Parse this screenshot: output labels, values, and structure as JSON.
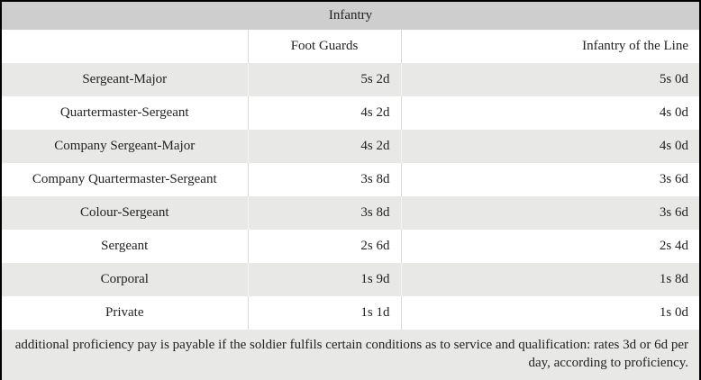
{
  "table": {
    "title": "Infantry",
    "columns": [
      {
        "label": ""
      },
      {
        "label": "Foot Guards"
      },
      {
        "label": "Infantry of the Line"
      }
    ],
    "rows": [
      {
        "rank": "Sergeant-Major",
        "foot_guards": "5s 2d",
        "infantry_of_the_line": "5s 0d"
      },
      {
        "rank": "Quartermaster-Sergeant",
        "foot_guards": "4s 2d",
        "infantry_of_the_line": "4s 0d"
      },
      {
        "rank": "Company Sergeant-Major",
        "foot_guards": "4s 2d",
        "infantry_of_the_line": "4s 0d"
      },
      {
        "rank": "Company Quartermaster-Sergeant",
        "foot_guards": "3s 8d",
        "infantry_of_the_line": "3s 6d"
      },
      {
        "rank": "Colour-Sergeant",
        "foot_guards": "3s 8d",
        "infantry_of_the_line": "3s 6d"
      },
      {
        "rank": "Sergeant",
        "foot_guards": "2s 6d",
        "infantry_of_the_line": "2s 4d"
      },
      {
        "rank": "Corporal",
        "foot_guards": "1s 9d",
        "infantry_of_the_line": "1s 8d"
      },
      {
        "rank": "Private",
        "foot_guards": "1s 1d",
        "infantry_of_the_line": "1s 0d"
      }
    ],
    "footnote": "additional proficiency pay is payable if the soldier fulfils certain conditions as to service and qualification: rates 3d or 6d per day, according to proficiency.",
    "colors": {
      "outer_border": "#000000",
      "title_bg": "#cecece",
      "stripe_bg": "#e8e8e6",
      "row_bg": "#ffffff",
      "footer_bg": "#e8e8e6",
      "grid_line": "#d9d9d6",
      "text": "#222222"
    }
  },
  "chart_data": {
    "type": "table",
    "title": "Infantry",
    "categories": [
      "Sergeant-Major",
      "Quartermaster-Sergeant",
      "Company Sergeant-Major",
      "Company Quartermaster-Sergeant",
      "Colour-Sergeant",
      "Sergeant",
      "Corporal",
      "Private"
    ],
    "series": [
      {
        "name": "Foot Guards",
        "values": [
          "5s 2d",
          "4s 2d",
          "4s 2d",
          "3s 8d",
          "3s 8d",
          "2s 6d",
          "1s 9d",
          "1s 1d"
        ]
      },
      {
        "name": "Infantry of the Line",
        "values": [
          "5s 0d",
          "4s 0d",
          "4s 0d",
          "3s 6d",
          "3s 6d",
          "2s 4d",
          "1s 8d",
          "1s 0d"
        ]
      }
    ],
    "note": "additional proficiency pay is payable if the soldier fulfils certain conditions as to service and qualification: rates 3d or 6d per day, according to proficiency."
  }
}
